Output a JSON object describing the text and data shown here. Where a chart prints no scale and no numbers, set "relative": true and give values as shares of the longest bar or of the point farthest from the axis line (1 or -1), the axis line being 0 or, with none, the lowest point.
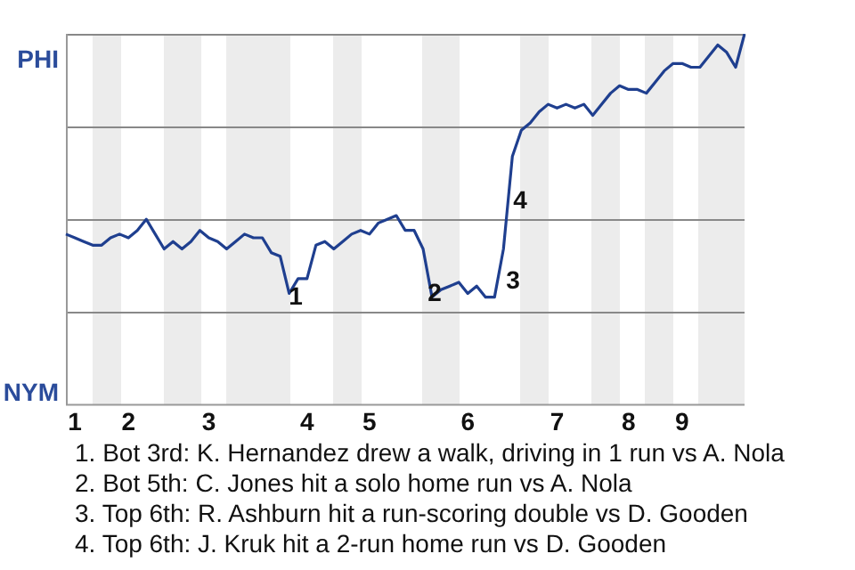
{
  "chart_data": {
    "type": "line",
    "relative": true,
    "categories": [
      null,
      "1",
      null,
      null,
      null,
      null,
      null,
      "2",
      null,
      null,
      null,
      null,
      null,
      null,
      null,
      null,
      "3",
      null,
      null,
      null,
      null,
      null,
      null,
      null,
      null,
      null,
      null,
      "4",
      null,
      null,
      null,
      null,
      null,
      null,
      "5",
      null,
      null,
      null,
      null,
      null,
      null,
      null,
      null,
      null,
      null,
      "6",
      null,
      null,
      null,
      null,
      null,
      null,
      null,
      null,
      null,
      "7",
      null,
      null,
      null,
      null,
      null,
      null,
      null,
      "8",
      null,
      null,
      null,
      null,
      null,
      "9",
      null,
      null,
      null,
      null,
      null,
      null,
      null
    ],
    "series": [
      {
        "color": "#1f3f8f",
        "values": [
          0.46,
          0.45,
          0.44,
          0.43,
          0.43,
          0.45,
          0.46,
          0.45,
          0.47,
          0.5,
          0.46,
          0.42,
          0.44,
          0.42,
          0.44,
          0.47,
          0.45,
          0.44,
          0.42,
          0.44,
          0.46,
          0.45,
          0.45,
          0.41,
          0.4,
          0.3,
          0.34,
          0.34,
          0.43,
          0.44,
          0.42,
          0.44,
          0.46,
          0.47,
          0.46,
          0.49,
          0.5,
          0.51,
          0.47,
          0.47,
          0.42,
          0.29,
          0.31,
          0.32,
          0.33,
          0.3,
          0.32,
          0.29,
          0.29,
          0.42,
          0.67,
          0.74,
          0.76,
          0.79,
          0.81,
          0.8,
          0.81,
          0.8,
          0.81,
          0.78,
          0.81,
          0.84,
          0.86,
          0.85,
          0.85,
          0.84,
          0.87,
          0.9,
          0.92,
          0.92,
          0.91,
          0.91,
          0.94,
          0.97,
          0.95,
          0.91,
          1
        ]
      }
    ],
    "annotations": [
      "PHI",
      "NYM",
      "1",
      "2",
      "3",
      "4",
      "1. Bot 3rd: K. Hernandez drew a walk, driving in 1 run vs A. Nola",
      "2. Bot 5th: C. Jones hit a solo home run vs A. Nola",
      "3. Top 6th: R. Ashburn hit a run-scoring double vs D. Gooden",
      "4. Top 6th: J. Kruk hit a 2-run home run vs D. Gooden"
    ],
    "grid": "y",
    "legend": false,
    "marker": "none",
    "line_style": "solid"
  }
}
